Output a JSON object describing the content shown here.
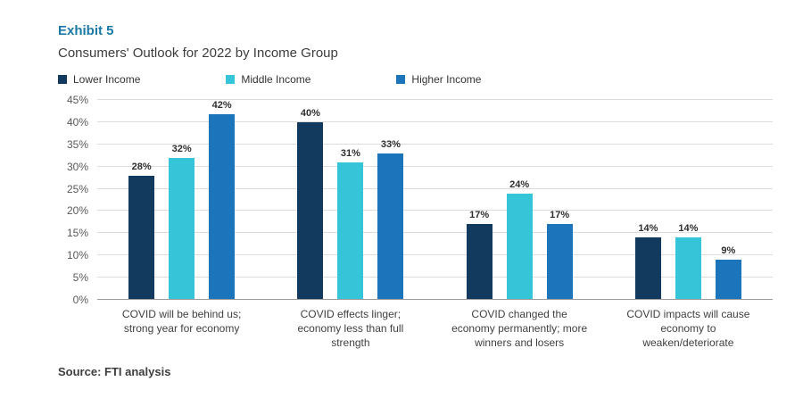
{
  "exhibit": "Exhibit 5",
  "title": "Consumers' Outlook for 2022 by Income Group",
  "source": "Source: FTI analysis",
  "colors": {
    "lower_income": "#12395e",
    "middle_income": "#36c5d8",
    "higher_income": "#1c74ba",
    "exhibit_accent": "#1b7aa5",
    "gridline": "#dcdcdc",
    "axis_line": "#9b9b9b"
  },
  "chart_data": {
    "type": "bar",
    "title": "Consumers' Outlook for 2022 by Income Group",
    "categories": [
      "COVID will be behind us; strong year for economy",
      "COVID effects linger; economy less than full strength",
      "COVID changed the economy permanently; more winners and losers",
      "COVID impacts will cause economy to weaken/deteriorate"
    ],
    "series": [
      {
        "name": "Lower Income",
        "color": "#12395e",
        "values": [
          28,
          40,
          17,
          14
        ]
      },
      {
        "name": "Middle Income",
        "color": "#36c5d8",
        "values": [
          32,
          31,
          24,
          14
        ]
      },
      {
        "name": "Higher Income",
        "color": "#1c74ba",
        "values": [
          42,
          33,
          17,
          9
        ]
      }
    ],
    "xlabel": "",
    "ylabel": "",
    "ylim": [
      0,
      45
    ],
    "ytick_step": 5,
    "ytick_suffix": "%",
    "grid": true,
    "legend_position": "top",
    "data_label_suffix": "%"
  }
}
